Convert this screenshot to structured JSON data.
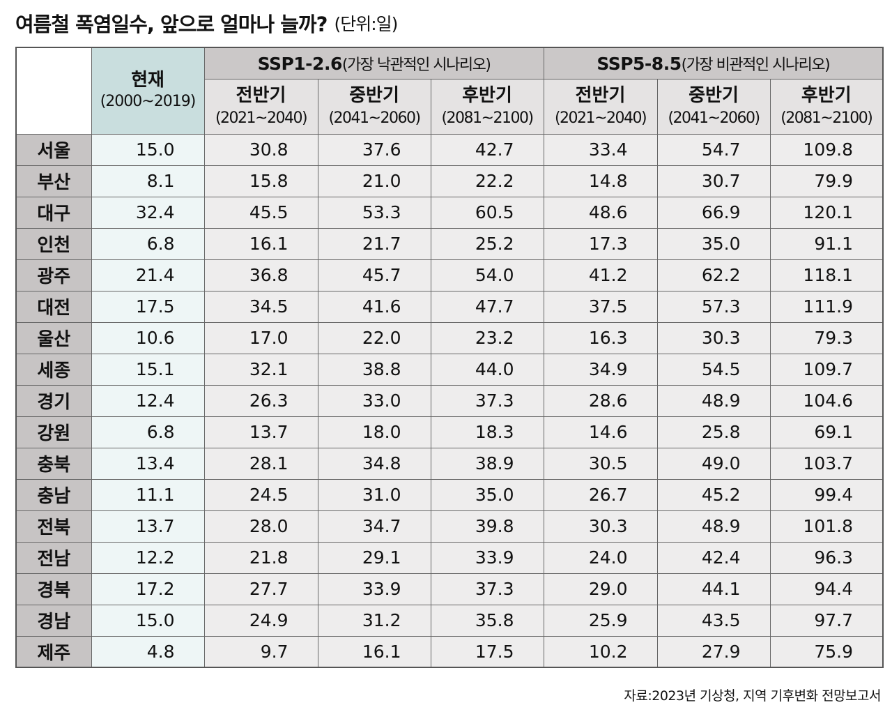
{
  "title": "여름철 폭염일수, 앞으로 얼마나 늘까?",
  "unit": "(단위:일)",
  "source": "자료:2023년 기상청, 지역 기후변화 전망보고서",
  "colors": {
    "current_header": "#c9dede",
    "current_cells": "#eef6f6",
    "scenario_header": "#cbc8c8",
    "value_cells": "#eeeded",
    "region_cells": "#c7c4c4"
  },
  "chart_data": {
    "type": "table",
    "current_label": "현재",
    "current_years": "(2000~2019)",
    "scenarios": [
      {
        "name": "SSP1-2.6",
        "desc": "(가장 낙관적인 시나리오)"
      },
      {
        "name": "SSP5-8.5",
        "desc": "(가장 비관적인 시나리오)"
      }
    ],
    "periods": [
      {
        "label": "전반기",
        "years": "(2021~2040)"
      },
      {
        "label": "중반기",
        "years": "(2041~2060)"
      },
      {
        "label": "후반기",
        "years": "(2081~2100)"
      },
      {
        "label": "전반기",
        "years": "(2021~2040)"
      },
      {
        "label": "중반기",
        "years": "(2041~2060)"
      },
      {
        "label": "후반기",
        "years": "(2081~2100)"
      }
    ],
    "rows": [
      {
        "region": "서울",
        "values": [
          "15.0",
          "30.8",
          "37.6",
          "42.7",
          "33.4",
          "54.7",
          "109.8"
        ]
      },
      {
        "region": "부산",
        "values": [
          "8.1",
          "15.8",
          "21.0",
          "22.2",
          "14.8",
          "30.7",
          "79.9"
        ]
      },
      {
        "region": "대구",
        "values": [
          "32.4",
          "45.5",
          "53.3",
          "60.5",
          "48.6",
          "66.9",
          "120.1"
        ]
      },
      {
        "region": "인천",
        "values": [
          "6.8",
          "16.1",
          "21.7",
          "25.2",
          "17.3",
          "35.0",
          "91.1"
        ]
      },
      {
        "region": "광주",
        "values": [
          "21.4",
          "36.8",
          "45.7",
          "54.0",
          "41.2",
          "62.2",
          "118.1"
        ]
      },
      {
        "region": "대전",
        "values": [
          "17.5",
          "34.5",
          "41.6",
          "47.7",
          "37.5",
          "57.3",
          "111.9"
        ]
      },
      {
        "region": "울산",
        "values": [
          "10.6",
          "17.0",
          "22.0",
          "23.2",
          "16.3",
          "30.3",
          "79.3"
        ]
      },
      {
        "region": "세종",
        "values": [
          "15.1",
          "32.1",
          "38.8",
          "44.0",
          "34.9",
          "54.5",
          "109.7"
        ]
      },
      {
        "region": "경기",
        "values": [
          "12.4",
          "26.3",
          "33.0",
          "37.3",
          "28.6",
          "48.9",
          "104.6"
        ]
      },
      {
        "region": "강원",
        "values": [
          "6.8",
          "13.7",
          "18.0",
          "18.3",
          "14.6",
          "25.8",
          "69.1"
        ]
      },
      {
        "region": "충북",
        "values": [
          "13.4",
          "28.1",
          "34.8",
          "38.9",
          "30.5",
          "49.0",
          "103.7"
        ]
      },
      {
        "region": "충남",
        "values": [
          "11.1",
          "24.5",
          "31.0",
          "35.0",
          "26.7",
          "45.2",
          "99.4"
        ]
      },
      {
        "region": "전북",
        "values": [
          "13.7",
          "28.0",
          "34.7",
          "39.8",
          "30.3",
          "48.9",
          "101.8"
        ]
      },
      {
        "region": "전남",
        "values": [
          "12.2",
          "21.8",
          "29.1",
          "33.9",
          "24.0",
          "42.4",
          "96.3"
        ]
      },
      {
        "region": "경북",
        "values": [
          "17.2",
          "27.7",
          "33.9",
          "37.3",
          "29.0",
          "44.1",
          "94.4"
        ]
      },
      {
        "region": "경남",
        "values": [
          "15.0",
          "24.9",
          "31.2",
          "35.8",
          "25.9",
          "43.5",
          "97.7"
        ]
      },
      {
        "region": "제주",
        "values": [
          "4.8",
          "9.7",
          "16.1",
          "17.5",
          "10.2",
          "27.9",
          "75.9"
        ]
      }
    ]
  }
}
